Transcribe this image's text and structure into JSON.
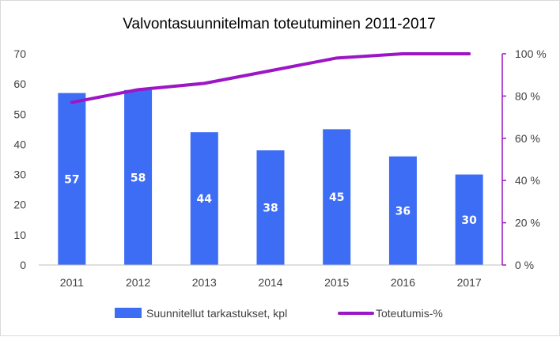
{
  "chart_data": {
    "type": "bar",
    "title": "Valvontasuunnitelman toteutuminen 2011-2017",
    "categories": [
      "2011",
      "2012",
      "2013",
      "2014",
      "2015",
      "2016",
      "2017"
    ],
    "series": [
      {
        "name": "Suunnitellut tarkastukset, kpl",
        "type": "bar",
        "axis": "left",
        "color": "#3d6cf5",
        "values": [
          57,
          58,
          44,
          38,
          45,
          36,
          30
        ],
        "data_labels": [
          "57",
          "58",
          "44",
          "38",
          "45",
          "36",
          "30"
        ]
      },
      {
        "name": "Toteutumis-%",
        "type": "line",
        "axis": "right",
        "color": "#9c16c6",
        "values": [
          77,
          83,
          86,
          92,
          98,
          100,
          100
        ]
      }
    ],
    "y_left": {
      "min": 0,
      "max": 70,
      "ticks": [
        "0",
        "10",
        "20",
        "30",
        "40",
        "50",
        "60",
        "70"
      ]
    },
    "y_right": {
      "min": 0,
      "max": 100,
      "ticks": [
        "0 %",
        "20 %",
        "40 %",
        "60 %",
        "80 %",
        "100 %"
      ]
    },
    "grid": false,
    "legend": "bottom"
  }
}
